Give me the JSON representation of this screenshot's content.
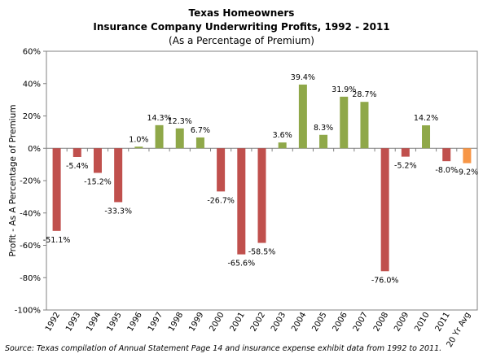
{
  "chart_data": {
    "type": "bar",
    "title": "Texas Homeowners",
    "subtitle": "Insurance Company Underwriting Profits, 1992 - 2011",
    "subtitle2": "(As a Percentage of Premium)",
    "ylabel": "Profit - As A Percentage of Premium",
    "xlabel": "",
    "categories": [
      "1992",
      "1993",
      "1994",
      "1995",
      "1996",
      "1997",
      "1998",
      "1999",
      "2000",
      "2001",
      "2002",
      "2003",
      "2004",
      "2005",
      "2006",
      "2007",
      "2008",
      "2009",
      "2010",
      "2011",
      "20 Yr Avg"
    ],
    "values": [
      -51.1,
      -5.4,
      -15.2,
      -33.3,
      1.0,
      14.3,
      12.3,
      6.7,
      -26.7,
      -65.6,
      -58.5,
      3.6,
      39.4,
      8.3,
      31.9,
      28.7,
      -76.0,
      -5.2,
      14.2,
      -8.0,
      -9.2
    ],
    "data_labels": [
      "-51.1%",
      "-5.4%",
      "-15.2%",
      "-33.3%",
      "1.0%",
      "14.3%",
      "12.3%",
      "6.7%",
      "-26.7%",
      "-65.6%",
      "-58.5%",
      "3.6%",
      "39.4%",
      "8.3%",
      "31.9%",
      "28.7%",
      "-76.0%",
      "-5.2%",
      "14.2%",
      "-8.0%",
      "-9.2%"
    ],
    "yticks": [
      60,
      40,
      20,
      0,
      -20,
      -40,
      -60,
      -80,
      -100
    ],
    "ytick_labels": [
      "60%",
      "40%",
      "20%",
      "0%",
      "-20%",
      "-40%",
      "-60%",
      "-80%",
      "-100%"
    ],
    "ylim": [
      -100,
      60
    ],
    "grid": false,
    "legend": "none",
    "colors": {
      "positive": "#8fa849",
      "negative": "#c0504d",
      "average": "#f79646"
    }
  },
  "source": "Source: Texas compilation of Annual Statement Page 14 and insurance expense exhibit data from 1992 to 2011."
}
